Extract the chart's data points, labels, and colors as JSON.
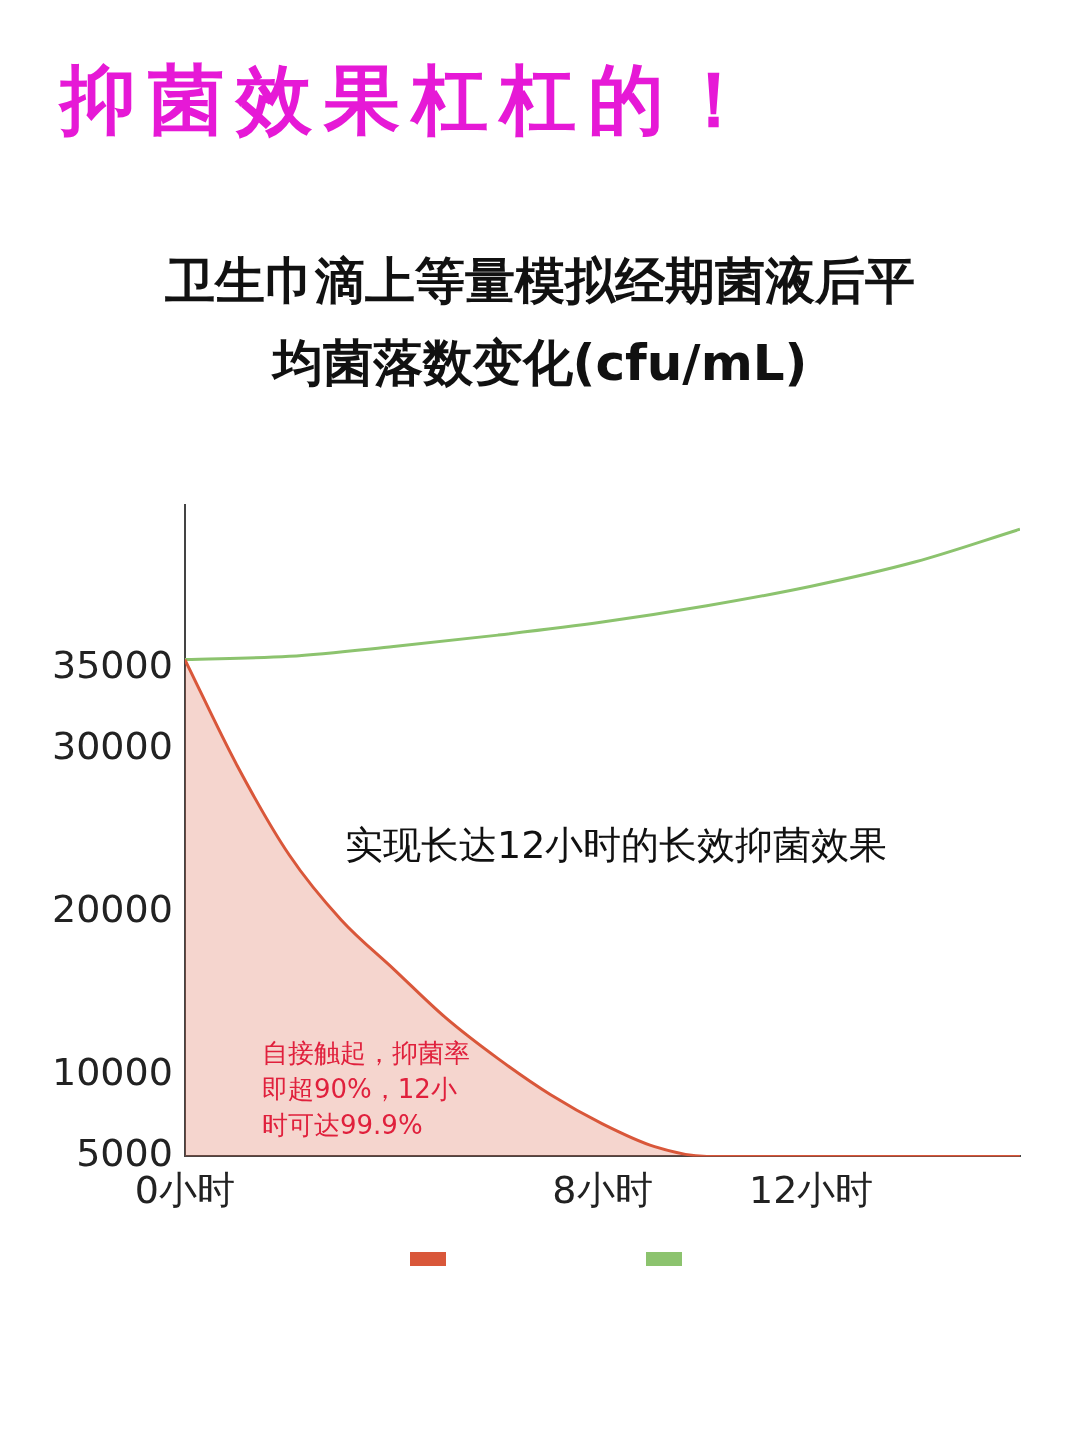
{
  "chart_data": {
    "type": "line",
    "title": "抑菌效果杠杠的！",
    "subtitle": "卫生巾滴上等量模拟经期菌液后平均菌落数变化(cfu/mL)",
    "x": [
      0,
      1,
      2,
      3,
      4,
      5,
      6,
      7,
      8,
      9,
      10,
      12,
      14,
      16
    ],
    "series": [
      {
        "type": "area",
        "color": "#d9573a",
        "values": [
          35500,
          29000,
          23500,
          19500,
          16500,
          13500,
          11000,
          8800,
          7000,
          5600,
          5000,
          5000,
          5000,
          5000
        ]
      },
      {
        "color": "#8cc36e",
        "x": [
          0,
          2,
          4,
          6,
          8,
          10,
          12,
          14,
          16
        ],
        "values": [
          35500,
          35700,
          36300,
          37000,
          37800,
          38800,
          40000,
          41500,
          43500
        ]
      }
    ],
    "xlim": [
      0,
      16
    ],
    "xticks": [
      {
        "value": 0,
        "label": "0小时"
      },
      {
        "value": 8,
        "label": "8小时"
      },
      {
        "value": 12,
        "label": "12小时"
      }
    ],
    "ylim": [
      5000,
      45000
    ],
    "yticks": [
      5000,
      10000,
      20000,
      30000,
      35000
    ],
    "grid": false,
    "marker": "none",
    "annotations": [
      "实现长达12小时的长效抑菌效果",
      "自接触起，抑菌率即超90%，12小时可达99.9%"
    ]
  }
}
